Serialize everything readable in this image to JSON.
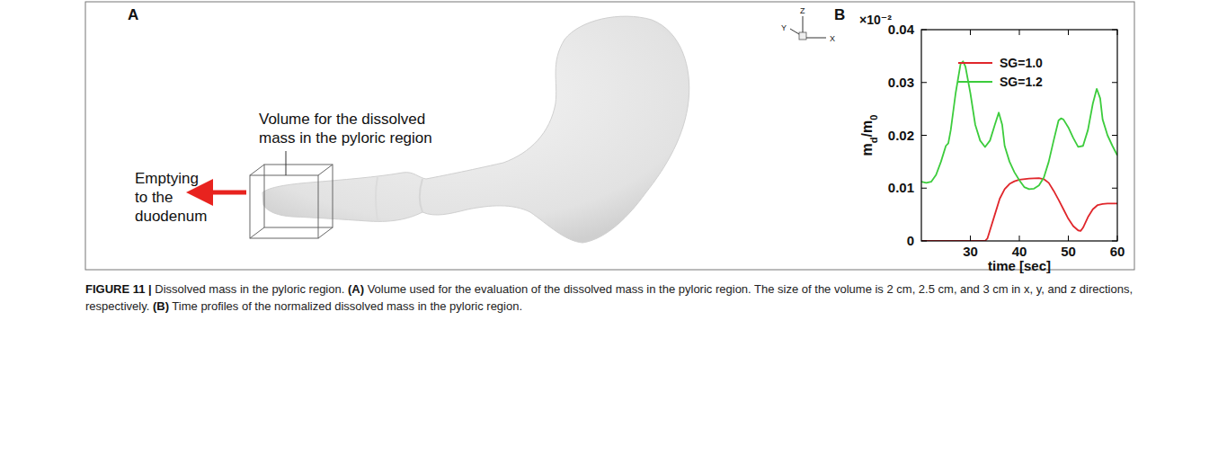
{
  "panel_a": {
    "letter": "A",
    "axis_labels": [
      "Z",
      "Y",
      "X"
    ],
    "volume_label": "Volume for the dissolved mass in the pyloric region",
    "arrow_label": "Emptying to the duodenum"
  },
  "chart_data": {
    "type": "line",
    "letter": "B",
    "multiplier": "×10⁻²",
    "xlabel": "time [sec]",
    "ylabel": [
      {
        "text": "m"
      },
      {
        "text": "d",
        "sub": true
      },
      {
        "text": "/m"
      },
      {
        "text": "0",
        "sub": true
      }
    ],
    "xlim": [
      20,
      60
    ],
    "xticks": [
      30,
      40,
      50,
      60
    ],
    "ylim": [
      0,
      0.04
    ],
    "yticks": [
      0,
      0.01,
      0.02,
      0.03,
      0.04
    ],
    "legend": "top",
    "series": [
      {
        "name": "SG=1.0",
        "color": "#e0262b",
        "x": [
          20,
          25,
          30,
          33,
          33.5,
          34,
          35,
          36,
          37,
          38,
          39,
          40,
          42,
          44,
          45,
          46,
          47,
          48,
          49,
          50,
          51,
          52,
          52.5,
          53,
          54,
          55,
          56,
          57,
          58,
          60
        ],
        "values": [
          0,
          0,
          0,
          0,
          0.0005,
          0.002,
          0.005,
          0.008,
          0.0098,
          0.0108,
          0.0113,
          0.0116,
          0.0118,
          0.0119,
          0.0117,
          0.011,
          0.0095,
          0.0078,
          0.006,
          0.0042,
          0.0028,
          0.002,
          0.0019,
          0.0025,
          0.0045,
          0.006,
          0.0068,
          0.007,
          0.0071,
          0.0071
        ]
      },
      {
        "name": "SG=1.2",
        "color": "#3ccc3c",
        "x": [
          20,
          21,
          22,
          23,
          24,
          25,
          25.5,
          26,
          27,
          28,
          28.5,
          29,
          30,
          31,
          32,
          33,
          34,
          35,
          35.8,
          36.5,
          37,
          38,
          39,
          40,
          41,
          42,
          43,
          44,
          45,
          46,
          47,
          48,
          48.5,
          49,
          50,
          51,
          52,
          53,
          54,
          55,
          55.8,
          56.5,
          57,
          58,
          59,
          60
        ],
        "values": [
          0.0112,
          0.011,
          0.0112,
          0.0125,
          0.015,
          0.018,
          0.0185,
          0.021,
          0.028,
          0.0335,
          0.034,
          0.033,
          0.028,
          0.022,
          0.019,
          0.0178,
          0.019,
          0.022,
          0.0243,
          0.022,
          0.018,
          0.015,
          0.013,
          0.0115,
          0.0102,
          0.0098,
          0.0099,
          0.0105,
          0.012,
          0.015,
          0.019,
          0.0228,
          0.0232,
          0.023,
          0.0215,
          0.0195,
          0.0178,
          0.018,
          0.021,
          0.026,
          0.0288,
          0.027,
          0.023,
          0.02,
          0.018,
          0.0162
        ]
      }
    ]
  },
  "caption": {
    "label": "FIGURE 11 |",
    "title": "Dissolved mass in the pyloric region.",
    "parts": [
      {
        "letter": "(A)",
        "text": "Volume used for the evaluation of the dissolved mass in the pyloric region. The size of the volume is 2 cm, 2.5 cm, and 3 cm in x, y, and z directions, respectively."
      },
      {
        "letter": "(B)",
        "text": "Time profiles of the normalized dissolved mass in the pyloric region."
      }
    ]
  }
}
